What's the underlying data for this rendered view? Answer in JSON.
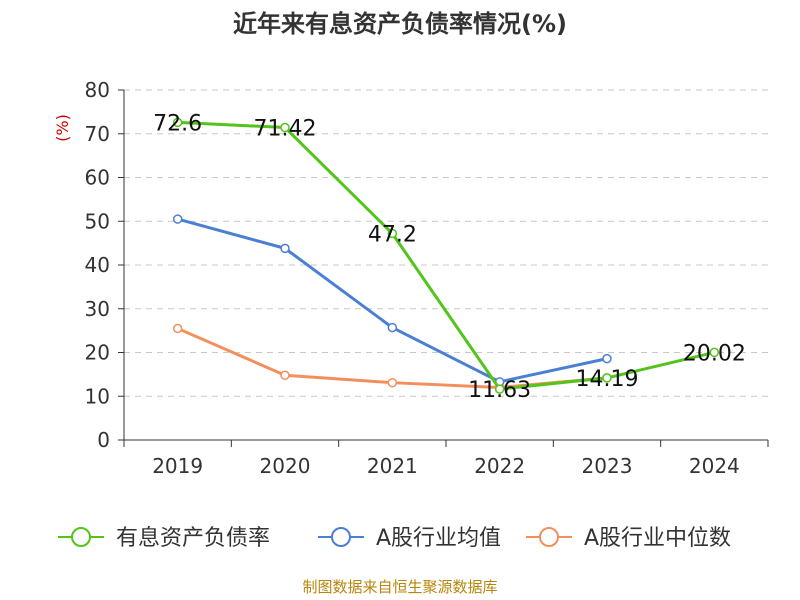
{
  "chart_data": {
    "type": "line",
    "title": "近年来有息资产负债率情况(%)",
    "ylabel": "(%)",
    "xlabel": "",
    "categories": [
      "2019",
      "2020",
      "2021",
      "2022",
      "2023",
      "2024"
    ],
    "ylim": [
      0,
      80
    ],
    "yticks": [
      0,
      10,
      20,
      30,
      40,
      50,
      60,
      70,
      80
    ],
    "grid": true,
    "legend_position": "bottom",
    "series": [
      {
        "name": "有息资产负债率",
        "color": "#52c41a",
        "values": [
          72.6,
          71.42,
          47.2,
          11.63,
          14.19,
          20.02
        ],
        "labels": [
          "72.6",
          "71.42",
          "47.2",
          "11.63",
          "14.19",
          "20.02"
        ]
      },
      {
        "name": "A股行业均值",
        "color": "#4a7fd4",
        "values": [
          50.5,
          43.8,
          25.7,
          13.3,
          18.6,
          null
        ]
      },
      {
        "name": "A股行业中位数",
        "color": "#f28f5c",
        "values": [
          25.5,
          14.8,
          13.1,
          12.0,
          14.2,
          null
        ]
      }
    ]
  },
  "source_text": "制图数据来自恒生聚源数据库"
}
